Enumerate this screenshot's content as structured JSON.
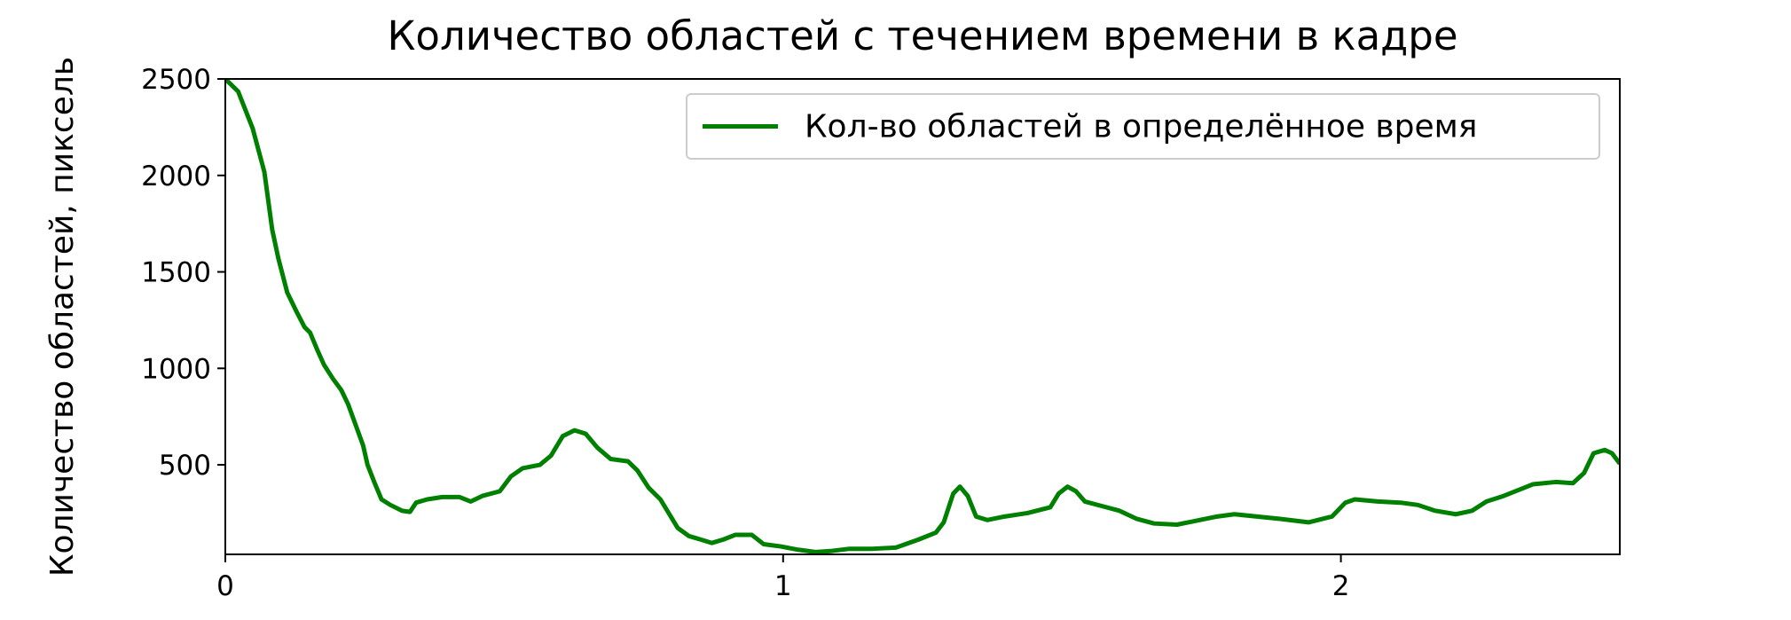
{
  "chart_data": {
    "type": "line",
    "title": "Количество областей с течением времени в кадре",
    "y_label": "Количество областей, пиксель",
    "x": [
      0,
      0.023,
      0.049,
      0.07,
      0.084,
      0.095,
      0.111,
      0.128,
      0.142,
      0.152,
      0.165,
      0.177,
      0.193,
      0.208,
      0.22,
      0.235,
      0.247,
      0.255,
      0.267,
      0.28,
      0.296,
      0.317,
      0.331,
      0.342,
      0.362,
      0.389,
      0.42,
      0.44,
      0.461,
      0.492,
      0.512,
      0.533,
      0.564,
      0.584,
      0.605,
      0.626,
      0.646,
      0.667,
      0.691,
      0.722,
      0.739,
      0.759,
      0.78,
      0.811,
      0.831,
      0.852,
      0.872,
      0.893,
      0.914,
      0.944,
      0.965,
      0.996,
      1.027,
      1.058,
      1.088,
      1.119,
      1.16,
      1.202,
      1.243,
      1.274,
      1.288,
      1.305,
      1.317,
      1.331,
      1.346,
      1.366,
      1.397,
      1.438,
      1.479,
      1.494,
      1.51,
      1.525,
      1.541,
      1.572,
      1.603,
      1.634,
      1.665,
      1.706,
      1.737,
      1.778,
      1.809,
      1.85,
      1.891,
      1.942,
      1.984,
      2.008,
      2.025,
      2.066,
      2.107,
      2.138,
      2.169,
      2.206,
      2.235,
      2.261,
      2.292,
      2.323,
      2.344,
      2.385,
      2.416,
      2.436,
      2.453,
      2.473,
      2.486,
      2.5
    ],
    "series": [
      {
        "name": "Кол-во областей в определённое время",
        "color": "#008000",
        "values": [
          2500,
          2435,
          2244,
          2018,
          1720,
          1571,
          1393,
          1292,
          1214,
          1185,
          1095,
          1018,
          946,
          887,
          815,
          696,
          601,
          500,
          411,
          321,
          292,
          262,
          256,
          304,
          321,
          333,
          333,
          310,
          339,
          363,
          440,
          482,
          500,
          548,
          649,
          679,
          661,
          589,
          530,
          518,
          470,
          381,
          321,
          173,
          131,
          113,
          95,
          113,
          137,
          137,
          89,
          77,
          60,
          48,
          54,
          65,
          65,
          71,
          113,
          149,
          202,
          351,
          387,
          339,
          232,
          214,
          232,
          250,
          280,
          351,
          387,
          363,
          310,
          286,
          262,
          220,
          196,
          190,
          208,
          232,
          244,
          232,
          220,
          202,
          232,
          304,
          321,
          310,
          304,
          292,
          262,
          244,
          262,
          310,
          339,
          375,
          399,
          411,
          405,
          458,
          560,
          577,
          560,
          506
        ]
      }
    ],
    "xlim": [
      0,
      2.5
    ],
    "ylim": [
      36,
      2500
    ],
    "xticks": [
      0,
      1,
      2
    ],
    "yticks": [
      500,
      1000,
      1500,
      2000,
      2500
    ],
    "legend": "upper right"
  }
}
